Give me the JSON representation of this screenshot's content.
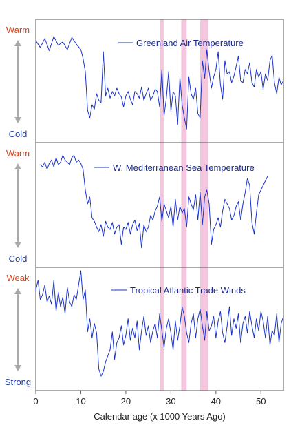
{
  "chart_data": {
    "type": "line",
    "xlabel": "Calendar age (x 1000 Years Ago)",
    "xlim": [
      0,
      55
    ],
    "xticks": [
      0,
      10,
      20,
      30,
      40,
      50
    ],
    "highlight_bands": [
      [
        27.6,
        28.4
      ],
      [
        32.3,
        33.5
      ],
      [
        36.5,
        38.3
      ]
    ],
    "colors": {
      "line": "#1a33c8",
      "band": "#f3c6de",
      "warm": "#d9401a",
      "cold": "#1f3a96",
      "arrow": "#aaaaaa",
      "frame": "#555555"
    },
    "panels": [
      {
        "series_name": "Greenland Air Temperature",
        "top_label": "Warm",
        "bottom_label": "Cold",
        "ylim": [
          0,
          100
        ],
        "x": [
          0,
          1,
          2,
          3,
          4,
          5,
          6,
          7,
          8,
          9,
          10,
          10.5,
          11,
          11.5,
          12,
          12.5,
          13,
          13.5,
          14,
          14.5,
          15,
          15.5,
          16,
          16.5,
          17,
          17.5,
          18,
          18.5,
          19,
          19.5,
          20,
          20.5,
          21,
          21.5,
          22,
          22.5,
          23,
          23.5,
          24,
          24.5,
          25,
          25.5,
          26,
          26.5,
          27,
          27.5,
          28,
          28.5,
          29,
          29.5,
          30,
          30.5,
          31,
          31.5,
          32,
          32.5,
          33,
          33.5,
          34,
          34.5,
          35,
          35.5,
          36,
          36.5,
          37,
          37.5,
          38,
          38.5,
          39,
          39.5,
          40,
          40.5,
          41,
          41.5,
          42,
          42.5,
          43,
          43.5,
          44,
          44.5,
          45,
          45.5,
          46,
          46.5,
          47,
          47.5,
          48,
          48.5,
          49,
          49.5,
          50,
          50.5,
          51,
          51.5,
          52,
          52.5,
          53,
          53.5,
          54,
          54.5,
          55
        ],
        "y": [
          88,
          82,
          90,
          79,
          92,
          84,
          87,
          80,
          91,
          85,
          80,
          72,
          60,
          25,
          18,
          30,
          26,
          40,
          34,
          32,
          78,
          38,
          45,
          36,
          42,
          38,
          45,
          40,
          37,
          28,
          38,
          42,
          35,
          30,
          42,
          40,
          36,
          46,
          34,
          40,
          45,
          34,
          38,
          44,
          42,
          28,
          62,
          20,
          36,
          60,
          24,
          42,
          38,
          12,
          55,
          30,
          18,
          8,
          55,
          40,
          35,
          45,
          22,
          18,
          70,
          54,
          80,
          60,
          45,
          55,
          62,
          78,
          48,
          35,
          70,
          58,
          60,
          50,
          56,
          65,
          74,
          52,
          50,
          62,
          58,
          68,
          50,
          46,
          62,
          55,
          60,
          44,
          58,
          52,
          70,
          75,
          50,
          40,
          55,
          48,
          52
        ]
      },
      {
        "series_name": "W. Mediterranean Sea Temperature",
        "top_label": "Warm",
        "bottom_label": "Cold",
        "ylim": [
          0,
          100
        ],
        "x": [
          1,
          1.5,
          2,
          2.5,
          3,
          3.5,
          4,
          4.5,
          5,
          5.5,
          6,
          6.5,
          7,
          7.5,
          8,
          8.5,
          9,
          9.5,
          10,
          10.5,
          11,
          11.5,
          12,
          12.5,
          13,
          13.5,
          14,
          14.5,
          15,
          15.5,
          16,
          16.5,
          17,
          17.5,
          18,
          18.5,
          19,
          19.5,
          20,
          20.5,
          21,
          21.5,
          22,
          22.5,
          23,
          23.5,
          24,
          24.5,
          25,
          25.5,
          26,
          26.5,
          27,
          27.5,
          28,
          28.5,
          29,
          29.5,
          30,
          30.5,
          31,
          31.5,
          32,
          32.5,
          33,
          33.5,
          34,
          34.5,
          35,
          35.5,
          36,
          36.5,
          37,
          37.5,
          38,
          38.5,
          39,
          39.5,
          40,
          40.5,
          41,
          41.5,
          42,
          42.5,
          43,
          43.5,
          44,
          44.5,
          45,
          45.5,
          46,
          46.5,
          47,
          47.5,
          48,
          48.5,
          49,
          49.5,
          50,
          50.5,
          51,
          51.5
        ],
        "y": [
          84,
          82,
          86,
          80,
          85,
          88,
          82,
          90,
          84,
          86,
          92,
          88,
          86,
          84,
          90,
          92,
          86,
          88,
          85,
          80,
          62,
          50,
          56,
          38,
          35,
          30,
          26,
          32,
          22,
          35,
          30,
          28,
          34,
          24,
          30,
          32,
          15,
          30,
          28,
          34,
          24,
          32,
          36,
          27,
          33,
          12,
          32,
          26,
          30,
          40,
          36,
          44,
          48,
          56,
          35,
          50,
          44,
          38,
          48,
          30,
          54,
          36,
          48,
          42,
          46,
          30,
          56,
          50,
          45,
          58,
          36,
          60,
          32,
          56,
          62,
          50,
          15,
          28,
          32,
          38,
          30,
          44,
          54,
          50,
          46,
          36,
          40,
          48,
          52,
          36,
          50,
          60,
          72,
          66,
          34,
          24,
          42,
          58,
          62,
          66,
          70,
          74
        ]
      },
      {
        "series_name": "Tropical Atlantic Trade Winds",
        "top_label": "Weak",
        "bottom_label": "Strong",
        "ylim": [
          0,
          100
        ],
        "x": [
          0,
          0.5,
          1,
          1.5,
          2,
          2.5,
          3,
          3.5,
          4,
          4.5,
          5,
          5.5,
          6,
          6.5,
          7,
          7.5,
          8,
          8.5,
          9,
          9.5,
          10,
          10.5,
          11,
          11.5,
          12,
          12.5,
          13,
          13.5,
          14,
          14.5,
          15,
          15.5,
          16,
          16.5,
          17,
          17.5,
          18,
          18.5,
          19,
          19.5,
          20,
          20.5,
          21,
          21.5,
          22,
          22.5,
          23,
          23.5,
          24,
          24.5,
          25,
          25.5,
          26,
          26.5,
          27,
          27.5,
          28,
          28.5,
          29,
          29.5,
          30,
          30.5,
          31,
          31.5,
          32,
          32.5,
          33,
          33.5,
          34,
          34.5,
          35,
          35.5,
          36,
          36.5,
          37,
          37.5,
          38,
          38.5,
          39,
          39.5,
          40,
          40.5,
          41,
          41.5,
          42,
          42.5,
          43,
          43.5,
          44,
          44.5,
          45,
          45.5,
          46,
          46.5,
          47,
          47.5,
          48,
          48.5,
          49,
          49.5,
          50,
          50.5,
          51,
          51.5,
          52,
          52.5,
          53,
          53.5,
          54,
          54.5,
          55
        ],
        "y": [
          80,
          88,
          72,
          76,
          84,
          70,
          75,
          68,
          88,
          62,
          78,
          66,
          74,
          60,
          82,
          70,
          66,
          76,
          72,
          84,
          96,
          72,
          80,
          45,
          56,
          40,
          52,
          44,
          14,
          8,
          12,
          20,
          25,
          30,
          45,
          22,
          36,
          40,
          50,
          34,
          42,
          56,
          38,
          48,
          40,
          54,
          30,
          46,
          58,
          42,
          50,
          36,
          46,
          52,
          40,
          60,
          46,
          32,
          48,
          56,
          44,
          30,
          54,
          38,
          50,
          66,
          58,
          44,
          36,
          52,
          60,
          40,
          56,
          64,
          50,
          38,
          62,
          46,
          50,
          58,
          40,
          54,
          62,
          44,
          36,
          50,
          66,
          42,
          56,
          48,
          60,
          36,
          52,
          58,
          44,
          62,
          50,
          40,
          56,
          46,
          62,
          54,
          40,
          58,
          34,
          46,
          42,
          60,
          36,
          52,
          58
        ]
      }
    ]
  }
}
